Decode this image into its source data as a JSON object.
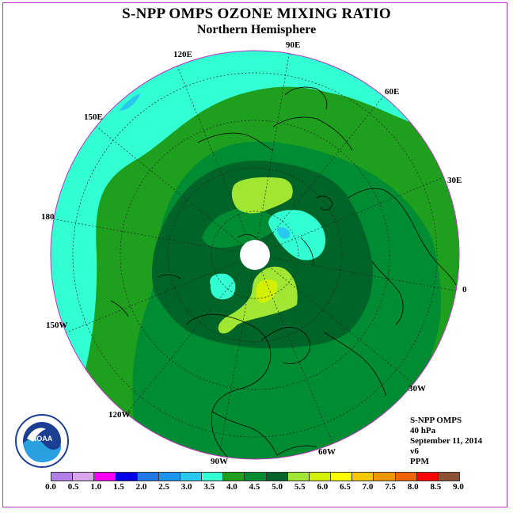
{
  "title": "S-NPP OMPS OZONE MIXING RATIO",
  "subtitle": "Northern Hemisphere",
  "longitude_labels": {
    "lon_120E": "120E",
    "lon_90E": "90E",
    "lon_60E": "60E",
    "lon_150E": "150E",
    "lon_30E": "30E",
    "lon_180": "180",
    "lon_0": "0",
    "lon_150W": "150W",
    "lon_30W": "30W",
    "lon_120W": "120W",
    "lon_90W": "90W",
    "lon_60W": "60W"
  },
  "info": {
    "instrument": "S-NPP OMPS",
    "level": "40 hPa",
    "date": "September 11, 2014",
    "version": "v6",
    "units": "PPM"
  },
  "logo_text": "NOAA",
  "colorbar": {
    "ticks": [
      "0.0",
      "0.5",
      "1.0",
      "1.5",
      "2.0",
      "2.5",
      "3.0",
      "3.5",
      "4.0",
      "4.5",
      "5.0",
      "5.5",
      "6.0",
      "6.5",
      "7.0",
      "7.5",
      "8.0",
      "8.5",
      "9.0"
    ],
    "colors": [
      "#b27fe6",
      "#d9a6ec",
      "#ff00ff",
      "#0000e6",
      "#1e78e6",
      "#1e96f0",
      "#28c8f0",
      "#32ffd2",
      "#1ea01e",
      "#008c32",
      "#006428",
      "#a0e632",
      "#d2f000",
      "#ffff00",
      "#f5c800",
      "#f09600",
      "#f06400",
      "#ff0000",
      "#8c5032"
    ]
  },
  "field_colors": {
    "cyan": "#32ffd2",
    "green_4": "#1ea01e",
    "green_45": "#008c32",
    "green_5": "#006428",
    "lime_55": "#a0e632",
    "lime_6": "#d2f000",
    "blue_3": "#28c8f0"
  }
}
